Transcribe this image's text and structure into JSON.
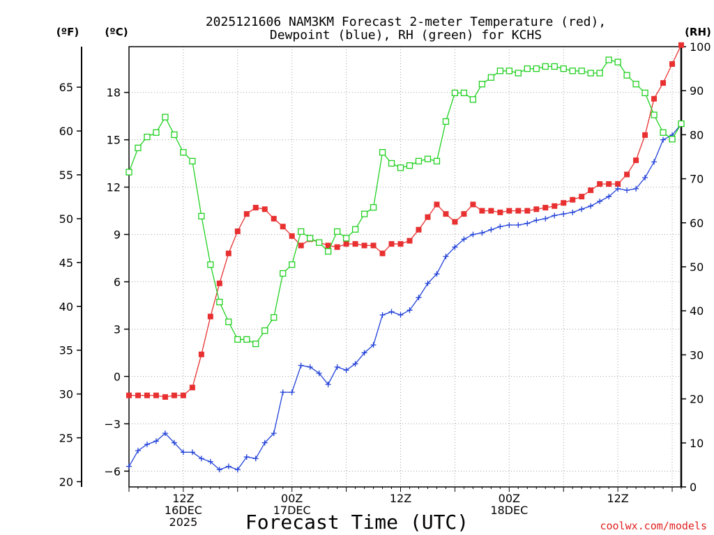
{
  "chart_data": {
    "type": "line",
    "title": "2025121606 NAM3KM Forecast 2-meter Temperature (red),",
    "subtitle": "Dewpoint (blue), RH (green) for KCHS",
    "xlabel": "Forecast Time (UTC)",
    "credit": "coolwx.com/models",
    "colors": {
      "temperature": "#e83030",
      "dewpoint": "#2040d8",
      "rh": "#20d020",
      "credit": "#e02020",
      "grid": "#a0a0a0"
    },
    "forecast_hours": {
      "start": 0,
      "end": 61,
      "step": 1
    },
    "axes": {
      "celsius": {
        "label": "(ºC)",
        "range": [
          -7,
          20.9
        ],
        "ticks": [
          -6,
          -3,
          0,
          3,
          6,
          9,
          12,
          15,
          18
        ]
      },
      "fahrenheit": {
        "label": "(ºF)",
        "range": [
          19.4,
          69.62
        ],
        "ticks": [
          20,
          25,
          30,
          35,
          40,
          45,
          50,
          55,
          60,
          65
        ]
      },
      "rh": {
        "label": "(RH)",
        "range": [
          0,
          100
        ],
        "ticks": [
          0,
          10,
          20,
          30,
          40,
          50,
          60,
          70,
          80,
          90,
          100
        ]
      }
    },
    "x_ticks": [
      {
        "hour": 6,
        "line1": "12Z",
        "line2": "16DEC",
        "line3": "2025"
      },
      {
        "hour": 18,
        "line1": "00Z",
        "line2": "17DEC",
        "line3": ""
      },
      {
        "hour": 30,
        "line1": "12Z",
        "line2": "",
        "line3": ""
      },
      {
        "hour": 42,
        "line1": "00Z",
        "line2": "18DEC",
        "line3": ""
      },
      {
        "hour": 54,
        "line1": "12Z",
        "line2": "",
        "line3": ""
      }
    ],
    "series": [
      {
        "name": "Temperature",
        "unit": "C",
        "marker": "filled-square",
        "color": "#e83030",
        "values": [
          -1.2,
          -1.2,
          -1.2,
          -1.2,
          -1.3,
          -1.2,
          -1.2,
          -0.7,
          1.4,
          3.8,
          5.9,
          7.8,
          9.2,
          10.3,
          10.7,
          10.6,
          10.0,
          9.5,
          8.9,
          8.3,
          8.7,
          8.5,
          8.3,
          8.2,
          8.4,
          8.4,
          8.3,
          8.3,
          7.8,
          8.4,
          8.4,
          8.6,
          9.3,
          10.1,
          10.9,
          10.3,
          9.8,
          10.3,
          10.9,
          10.5,
          10.5,
          10.4,
          10.5,
          10.5,
          10.5,
          10.6,
          10.7,
          10.8,
          11.0,
          11.2,
          11.4,
          11.8,
          12.2,
          12.2,
          12.2,
          12.8,
          13.7,
          15.3,
          17.6,
          18.6,
          19.8,
          21.0
        ]
      },
      {
        "name": "Dewpoint",
        "unit": "C",
        "marker": "plus",
        "color": "#2040d8",
        "values": [
          -5.7,
          -4.7,
          -4.3,
          -4.1,
          -3.6,
          -4.2,
          -4.8,
          -4.8,
          -5.2,
          -5.4,
          -5.9,
          -5.7,
          -5.9,
          -5.1,
          -5.2,
          -4.2,
          -3.6,
          -1.0,
          -1.0,
          0.7,
          0.6,
          0.2,
          -0.5,
          0.6,
          0.4,
          0.8,
          1.5,
          2.0,
          3.9,
          4.1,
          3.9,
          4.2,
          5.0,
          5.9,
          6.5,
          7.6,
          8.2,
          8.7,
          9.0,
          9.1,
          9.3,
          9.5,
          9.6,
          9.6,
          9.7,
          9.9,
          10.0,
          10.2,
          10.3,
          10.4,
          10.6,
          10.8,
          11.1,
          11.4,
          11.9,
          11.8,
          11.9,
          12.6,
          13.6,
          15.0,
          15.3,
          16.0
        ]
      },
      {
        "name": "RH",
        "unit": "%",
        "marker": "open-square",
        "color": "#20d020",
        "values": [
          71.5,
          77.0,
          79.5,
          80.5,
          84.0,
          80.0,
          76.0,
          74.0,
          61.5,
          50.5,
          42.0,
          37.5,
          33.5,
          33.5,
          32.5,
          35.5,
          38.5,
          48.5,
          50.5,
          58.0,
          56.5,
          55.5,
          53.5,
          58.0,
          56.5,
          58.5,
          62.0,
          63.5,
          76.0,
          73.5,
          72.5,
          73.0,
          74.0,
          74.5,
          74.0,
          83.0,
          89.5,
          89.5,
          88.0,
          91.5,
          93.0,
          94.5,
          94.5,
          94.0,
          95.0,
          95.0,
          95.5,
          95.5,
          95.0,
          94.5,
          94.5,
          94.0,
          94.0,
          97.0,
          96.5,
          93.5,
          91.5,
          89.5,
          84.5,
          80.5,
          79.0,
          82.5
        ]
      }
    ]
  }
}
